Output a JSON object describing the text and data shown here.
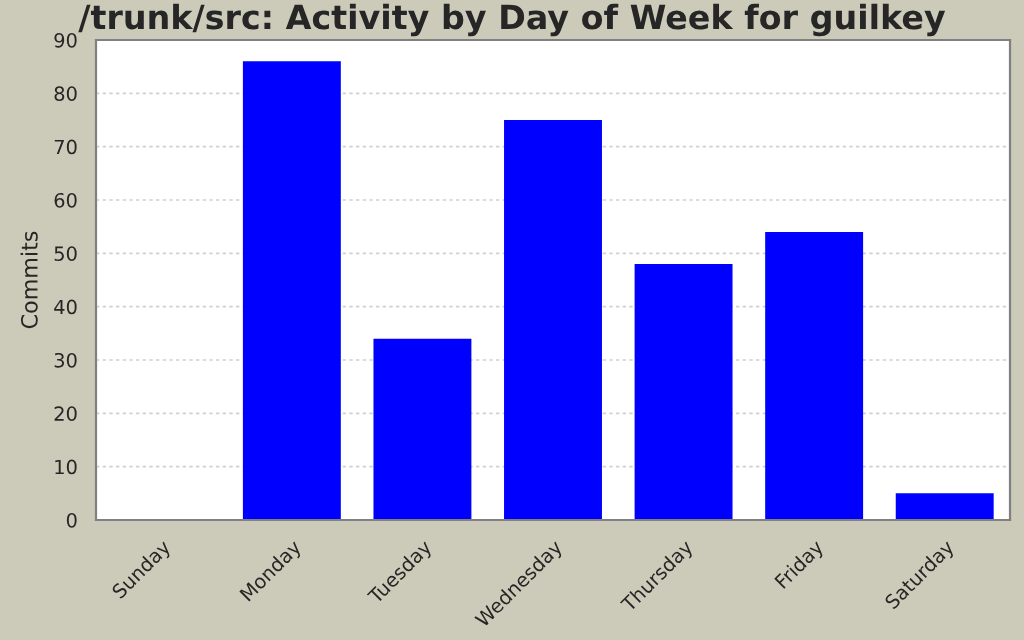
{
  "chart_data": {
    "type": "bar",
    "title": "/trunk/src: Activity by Day of Week for guilkey",
    "ylabel": "Commits",
    "categories": [
      "Sunday",
      "Monday",
      "Tuesday",
      "Wednesday",
      "Thursday",
      "Friday",
      "Saturday"
    ],
    "values": [
      0,
      86,
      34,
      75,
      48,
      54,
      5
    ],
    "color": "#0000ff",
    "ylim": [
      0,
      90
    ],
    "yticks": [
      0,
      10,
      20,
      30,
      40,
      50,
      60,
      70,
      80,
      90
    ],
    "grid": "y"
  }
}
